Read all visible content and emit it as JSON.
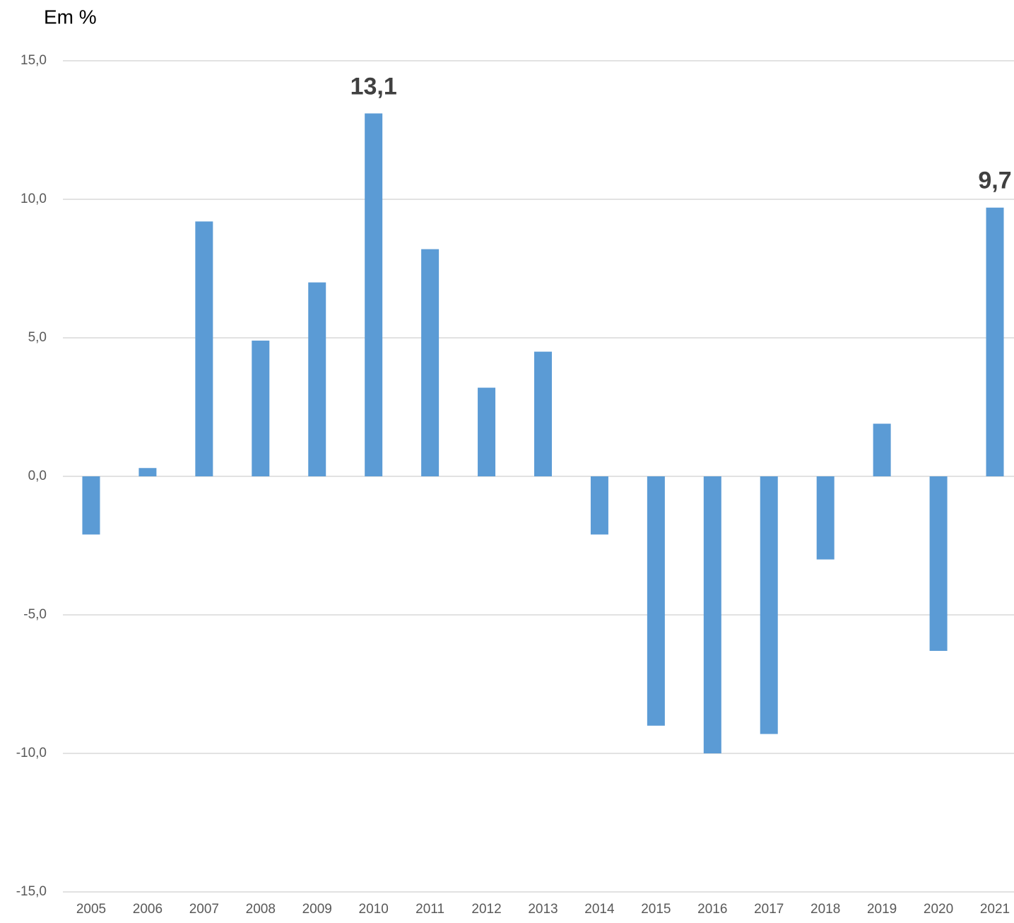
{
  "chart_data": {
    "type": "bar",
    "y_label": "Em %",
    "categories": [
      "2005",
      "2006",
      "2007",
      "2008",
      "2009",
      "2010",
      "2011",
      "2012",
      "2013",
      "2014",
      "2015",
      "2016",
      "2017",
      "2018",
      "2019",
      "2020",
      "2021"
    ],
    "values": [
      -2.1,
      0.3,
      9.2,
      4.9,
      7.0,
      13.1,
      8.2,
      3.2,
      4.5,
      -2.1,
      -9.0,
      -10.0,
      -9.3,
      -3.0,
      1.9,
      -6.3,
      9.7
    ],
    "value_labels": [
      null,
      null,
      null,
      null,
      null,
      "13,1",
      null,
      null,
      null,
      null,
      null,
      null,
      null,
      null,
      null,
      null,
      "9,7"
    ],
    "color": "#5b9bd5",
    "ylim": [
      -15,
      15
    ],
    "yticks": [
      {
        "value": -15,
        "label": "-15,0"
      },
      {
        "value": -10,
        "label": "-10,0"
      },
      {
        "value": -5,
        "label": "-5,0"
      },
      {
        "value": 0,
        "label": "0,0"
      },
      {
        "value": 5,
        "label": "5,0"
      },
      {
        "value": 10,
        "label": "10,0"
      },
      {
        "value": 15,
        "label": "15,0"
      }
    ],
    "grid": true
  }
}
